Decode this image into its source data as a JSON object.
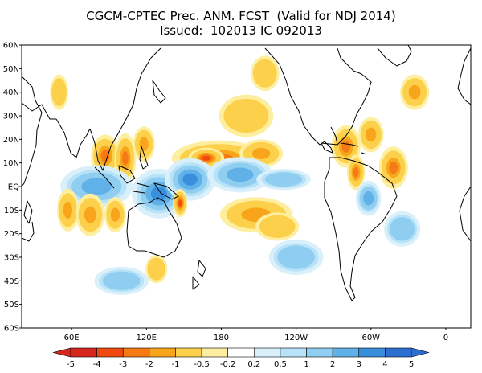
{
  "title": {
    "line1": "CGCM-CPTEC Prec. ANM. FCST  (Valid for NDJ 2014)",
    "line2": "Issued:  102013 IC 092013"
  },
  "axes": {
    "lat_labels": [
      "60N",
      "50N",
      "40N",
      "30N",
      "20N",
      "10N",
      "EQ",
      "10S",
      "20S",
      "30S",
      "40S",
      "50S",
      "60S"
    ],
    "lon_labels": [
      "60E",
      "120E",
      "180",
      "120W",
      "60W",
      "0"
    ]
  },
  "colorbar": {
    "labels": [
      "-5",
      "-4",
      "-3",
      "-2",
      "-1",
      "-0.5",
      "-0.2",
      "0.2",
      "0.5",
      "1",
      "2",
      "3",
      "4",
      "5"
    ],
    "colors": [
      "#d7261e",
      "#f04a0f",
      "#f57a14",
      "#f8a51c",
      "#fcd04a",
      "#fdeea0",
      "#ffffff",
      "#d9f0fb",
      "#b7e2f7",
      "#8fcdf1",
      "#5fb1e8",
      "#3a8fdc",
      "#2d6fd1"
    ]
  },
  "anomaly_patches": [
    {
      "name": "n-pacific-positive-band",
      "lon": 178,
      "lat": 12,
      "rx": 26,
      "ry": 5,
      "level": -3
    },
    {
      "name": "n-pacific-band-core",
      "lon": 168,
      "lat": 12,
      "rx": 10,
      "ry": 3,
      "level": -4
    },
    {
      "name": "ne-pacific-band",
      "lon": 212,
      "lat": 14,
      "rx": 12,
      "ry": 4,
      "level": -2
    },
    {
      "name": "bay-of-bengal-positive",
      "lon": 87,
      "lat": 13,
      "rx": 8,
      "ry": 6,
      "level": -3
    },
    {
      "name": "indochina-positive",
      "lon": 103,
      "lat": 12,
      "rx": 6,
      "ry": 7,
      "level": -3
    },
    {
      "name": "s-china-sea-positive",
      "lon": 118,
      "lat": 18,
      "rx": 6,
      "ry": 5,
      "level": -2
    },
    {
      "name": "indian-ocean-negative",
      "lon": 80,
      "lat": 0,
      "rx": 20,
      "ry": 6,
      "level": 2
    },
    {
      "name": "maritime-continent-negative",
      "lon": 130,
      "lat": -3,
      "rx": 15,
      "ry": 7,
      "level": 3
    },
    {
      "name": "w-pacific-negative",
      "lon": 155,
      "lat": 3,
      "rx": 14,
      "ry": 6,
      "level": 3
    },
    {
      "name": "equatorial-pacific-negative",
      "lon": 195,
      "lat": 5,
      "rx": 18,
      "ry": 5,
      "level": 2
    },
    {
      "name": "e-pacific-negative",
      "lon": 230,
      "lat": 3,
      "rx": 15,
      "ry": 3,
      "level": 1
    },
    {
      "name": "new-guinea-positive",
      "lon": 147,
      "lat": -7,
      "rx": 4,
      "ry": 4,
      "level": -4
    },
    {
      "name": "w-indian-ocean-positive",
      "lon": 57,
      "lat": -10,
      "rx": 6,
      "ry": 6,
      "level": -2
    },
    {
      "name": "madagascar-positive",
      "lon": 75,
      "lat": -12,
      "rx": 8,
      "ry": 6,
      "level": -2
    },
    {
      "name": "s-indian-ocean-positive",
      "lon": 95,
      "lat": -12,
      "rx": 6,
      "ry": 5,
      "level": -2
    },
    {
      "name": "spcz-positive",
      "lon": 208,
      "lat": -12,
      "rx": 20,
      "ry": 5,
      "level": -2
    },
    {
      "name": "s-pacific-positive",
      "lon": 225,
      "lat": -17,
      "rx": 12,
      "ry": 4,
      "level": -1
    },
    {
      "name": "caribbean-positive",
      "lon": 280,
      "lat": 17,
      "rx": 8,
      "ry": 6,
      "level": -3
    },
    {
      "name": "n-south-america-positive",
      "lon": 288,
      "lat": 6,
      "rx": 5,
      "ry": 5,
      "level": -3
    },
    {
      "name": "atlantic-positive",
      "lon": 318,
      "lat": 8,
      "rx": 8,
      "ry": 6,
      "level": -3
    },
    {
      "name": "w-atlantic-positive",
      "lon": 300,
      "lat": 22,
      "rx": 7,
      "ry": 5,
      "level": -2
    },
    {
      "name": "n-atlantic-positive",
      "lon": 335,
      "lat": 40,
      "rx": 8,
      "ry": 5,
      "level": -2
    },
    {
      "name": "amazon-negative",
      "lon": 298,
      "lat": -5,
      "rx": 7,
      "ry": 5,
      "level": 2
    },
    {
      "name": "s-atlantic-negative",
      "lon": 325,
      "lat": -18,
      "rx": 10,
      "ry": 5,
      "level": 1
    },
    {
      "name": "n-pacific-positive",
      "lon": 200,
      "lat": 30,
      "rx": 15,
      "ry": 6,
      "level": -1
    },
    {
      "name": "alaska-positive",
      "lon": 215,
      "lat": 48,
      "rx": 8,
      "ry": 5,
      "level": -1
    },
    {
      "name": "s-pacific-negative",
      "lon": 240,
      "lat": -30,
      "rx": 15,
      "ry": 5,
      "level": 1
    },
    {
      "name": "s-indian-negative",
      "lon": 100,
      "lat": -40,
      "rx": 15,
      "ry": 4,
      "level": 1
    },
    {
      "name": "australia-positive",
      "lon": 128,
      "lat": -35,
      "rx": 6,
      "ry": 4,
      "level": -1
    },
    {
      "name": "n-africa-positive",
      "lon": 50,
      "lat": 40,
      "rx": 5,
      "ry": 5,
      "level": -1
    }
  ]
}
